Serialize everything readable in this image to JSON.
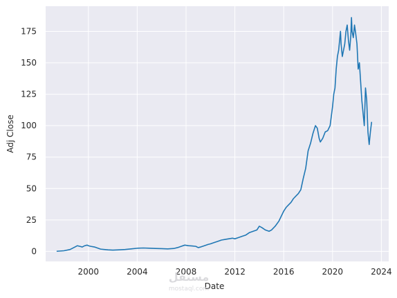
{
  "chart_data": {
    "type": "line",
    "title": "",
    "xlabel": "Date",
    "ylabel": "Adj Close",
    "xlim": [
      1996.5,
      2024.6
    ],
    "ylim": [
      -8,
      195
    ],
    "x_ticks": [
      2000,
      2004,
      2008,
      2012,
      2016,
      2020,
      2024
    ],
    "x_tick_labels": [
      "2000",
      "2004",
      "2008",
      "2012",
      "2016",
      "2020",
      "2024"
    ],
    "y_ticks": [
      0,
      25,
      50,
      75,
      100,
      125,
      150,
      175
    ],
    "y_tick_labels": [
      "0",
      "25",
      "50",
      "75",
      "100",
      "125",
      "150",
      "175"
    ],
    "grid": true,
    "legend": "none",
    "line_color": "#1f77b4",
    "background_color": "#eaeaf2",
    "grid_color": "#ffffff",
    "series": [
      {
        "x": [
          1997.4,
          1998.0,
          1998.5,
          1998.9,
          1999.1,
          1999.3,
          1999.5,
          1999.7,
          1999.9,
          2000.0,
          2000.2,
          2000.5,
          2000.8,
          2001.0,
          2001.3,
          2001.6,
          2002.0,
          2002.5,
          2003.0,
          2003.5,
          2004.0,
          2004.5,
          2005.0,
          2005.5,
          2006.0,
          2006.5,
          2007.0,
          2007.3,
          2007.6,
          2007.9,
          2008.2,
          2008.5,
          2008.8,
          2009.0,
          2009.2,
          2009.5,
          2009.8,
          2010.0,
          2010.3,
          2010.6,
          2010.9,
          2011.2,
          2011.5,
          2011.8,
          2012.0,
          2012.3,
          2012.6,
          2012.9,
          2013.2,
          2013.5,
          2013.8,
          2014.0,
          2014.2,
          2014.5,
          2014.8,
          2015.0,
          2015.3,
          2015.6,
          2015.8,
          2016.0,
          2016.2,
          2016.4,
          2016.6,
          2016.8,
          2017.0,
          2017.2,
          2017.4,
          2017.6,
          2017.8,
          2018.0,
          2018.2,
          2018.4,
          2018.6,
          2018.75,
          2018.9,
          2019.0,
          2019.2,
          2019.4,
          2019.6,
          2019.8,
          2020.0,
          2020.1,
          2020.2,
          2020.3,
          2020.4,
          2020.5,
          2020.6,
          2020.65,
          2020.7,
          2020.8,
          2020.9,
          2021.0,
          2021.1,
          2021.2,
          2021.3,
          2021.4,
          2021.5,
          2021.55,
          2021.6,
          2021.7,
          2021.8,
          2021.9,
          2022.0,
          2022.1,
          2022.2,
          2022.3,
          2022.4,
          2022.5,
          2022.6,
          2022.7,
          2022.8,
          2022.9,
          2023.0,
          2023.1,
          2023.2
        ],
        "y": [
          0.1,
          0.5,
          1.5,
          3.5,
          4.5,
          4.0,
          3.5,
          4.5,
          5.0,
          4.5,
          4.0,
          3.5,
          2.5,
          1.8,
          1.5,
          1.2,
          1.0,
          1.2,
          1.5,
          2.0,
          2.5,
          2.7,
          2.5,
          2.3,
          2.2,
          2.0,
          2.3,
          3.0,
          4.0,
          5.0,
          4.5,
          4.3,
          4.0,
          3.0,
          3.5,
          4.5,
          5.5,
          6.0,
          7.0,
          8.0,
          9.0,
          9.5,
          10.0,
          10.5,
          10.0,
          11.0,
          12.0,
          13.0,
          15.0,
          16.0,
          17.0,
          20.0,
          19.0,
          17.0,
          16.0,
          17.0,
          20.0,
          24.0,
          28.0,
          32.0,
          35.0,
          37.0,
          39.0,
          42.0,
          44.0,
          46.0,
          49.0,
          58.0,
          66.0,
          80.0,
          86.0,
          94.0,
          100.0,
          98.0,
          90.0,
          87.0,
          90.0,
          95.0,
          96.0,
          100.0,
          115.0,
          125.0,
          130.0,
          145.0,
          155.0,
          160.0,
          170.0,
          175.0,
          165.0,
          155.0,
          160.0,
          165.0,
          175.0,
          180.0,
          168.0,
          160.0,
          172.0,
          186.0,
          175.0,
          170.0,
          180.0,
          173.0,
          165.0,
          145.0,
          150.0,
          135.0,
          120.0,
          110.0,
          100.0,
          130.0,
          120.0,
          95.0,
          85.0,
          95.0,
          103.0
        ]
      }
    ]
  },
  "watermark": {
    "logo_text": "مستقل",
    "sub_text": "mostaql.com"
  }
}
